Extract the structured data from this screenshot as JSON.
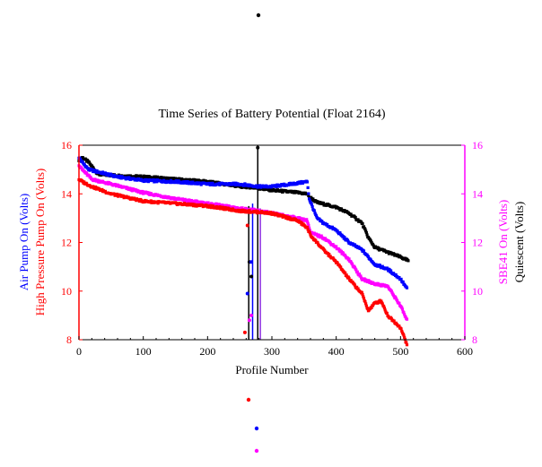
{
  "chart_data": {
    "type": "scatter",
    "title": "Time Series of Battery Potential (Float 2164)",
    "xlabel": "Profile Number",
    "xlim": [
      0,
      600
    ],
    "x_ticks": [
      0,
      100,
      200,
      300,
      400,
      500,
      600
    ],
    "ylim": [
      8,
      16
    ],
    "y_ticks": [
      8,
      10,
      12,
      14,
      16
    ],
    "left_axis_color": "#ff0000",
    "right_axis_color": "#ff00ff",
    "y_label_left_outer": "Air Pump On (Volts)",
    "y_label_left_inner": "High Pressure Pump On (Volts)",
    "y_label_right_inner": "SBE41 On (Volts)",
    "y_label_right_outer": "Quiescent (Volts)",
    "grid": false,
    "series": [
      {
        "name": "Quiescent (Volts)",
        "color": "#000000",
        "anchors": [
          [
            0,
            15.4
          ],
          [
            5,
            15.5
          ],
          [
            15,
            15.3
          ],
          [
            30,
            14.8
          ],
          [
            60,
            14.75
          ],
          [
            100,
            14.7
          ],
          [
            150,
            14.6
          ],
          [
            200,
            14.5
          ],
          [
            250,
            14.3
          ],
          [
            265,
            14.28
          ],
          [
            300,
            14.15
          ],
          [
            340,
            14.05
          ],
          [
            355,
            14.0
          ],
          [
            357,
            13.9
          ],
          [
            370,
            13.65
          ],
          [
            400,
            13.45
          ],
          [
            420,
            13.2
          ],
          [
            440,
            12.8
          ],
          [
            450,
            12.2
          ],
          [
            460,
            11.8
          ],
          [
            480,
            11.6
          ],
          [
            500,
            11.4
          ],
          [
            512,
            11.25
          ]
        ],
        "outliers": [
          [
            265,
            11.2
          ],
          [
            268,
            10.6
          ],
          [
            278,
            15.9
          ]
        ]
      },
      {
        "name": "Air Pump On (Volts)",
        "color": "#0000ff",
        "anchors": [
          [
            0,
            15.5
          ],
          [
            5,
            15.3
          ],
          [
            15,
            15.0
          ],
          [
            30,
            14.9
          ],
          [
            60,
            14.7
          ],
          [
            100,
            14.55
          ],
          [
            150,
            14.5
          ],
          [
            200,
            14.4
          ],
          [
            250,
            14.4
          ],
          [
            280,
            14.3
          ],
          [
            300,
            14.3
          ],
          [
            330,
            14.4
          ],
          [
            355,
            14.5
          ],
          [
            358,
            13.8
          ],
          [
            370,
            13.0
          ],
          [
            380,
            12.8
          ],
          [
            400,
            12.5
          ],
          [
            420,
            12.0
          ],
          [
            440,
            11.7
          ],
          [
            460,
            11.1
          ],
          [
            480,
            10.9
          ],
          [
            500,
            10.5
          ],
          [
            510,
            10.1
          ]
        ],
        "outliers": [
          [
            262,
            9.9
          ],
          [
            268,
            11.2
          ]
        ]
      },
      {
        "name": "SBE41 On (Volts)",
        "color": "#ff00ff",
        "anchors": [
          [
            0,
            15.2
          ],
          [
            5,
            15.0
          ],
          [
            20,
            14.6
          ],
          [
            50,
            14.4
          ],
          [
            100,
            14.05
          ],
          [
            150,
            13.8
          ],
          [
            200,
            13.6
          ],
          [
            250,
            13.4
          ],
          [
            280,
            13.3
          ],
          [
            300,
            13.2
          ],
          [
            340,
            13.0
          ],
          [
            355,
            12.9
          ],
          [
            360,
            12.4
          ],
          [
            380,
            12.2
          ],
          [
            400,
            11.8
          ],
          [
            420,
            11.3
          ],
          [
            440,
            10.5
          ],
          [
            460,
            10.3
          ],
          [
            480,
            10.2
          ],
          [
            500,
            9.4
          ],
          [
            510,
            8.8
          ]
        ],
        "outliers": [
          [
            265,
            8.8
          ],
          [
            268,
            9.0
          ]
        ]
      },
      {
        "name": "High Pressure Pump On (Volts)",
        "color": "#ff0000",
        "anchors": [
          [
            0,
            14.6
          ],
          [
            5,
            14.5
          ],
          [
            20,
            14.3
          ],
          [
            50,
            14.0
          ],
          [
            100,
            13.7
          ],
          [
            150,
            13.6
          ],
          [
            200,
            13.5
          ],
          [
            250,
            13.3
          ],
          [
            280,
            13.25
          ],
          [
            300,
            13.2
          ],
          [
            340,
            12.9
          ],
          [
            355,
            12.6
          ],
          [
            360,
            12.3
          ],
          [
            380,
            11.7
          ],
          [
            400,
            11.2
          ],
          [
            420,
            10.5
          ],
          [
            440,
            9.9
          ],
          [
            450,
            9.2
          ],
          [
            460,
            9.5
          ],
          [
            470,
            9.6
          ],
          [
            480,
            9.0
          ],
          [
            500,
            8.5
          ],
          [
            510,
            7.8
          ]
        ],
        "outliers": [
          [
            258,
            8.3
          ],
          [
            262,
            12.7
          ]
        ]
      }
    ],
    "vertical_lines": [
      {
        "x": 264,
        "y_from": 8,
        "y_to": 13.5,
        "color": "#000000"
      },
      {
        "x": 270,
        "y_from": 8,
        "y_to": 13.6,
        "color": "#0000ff"
      },
      {
        "x": 278,
        "y_from": 8,
        "y_to": 16,
        "color": "#000000"
      },
      {
        "x": 282,
        "y_from": 8,
        "y_to": 13.4,
        "color": "#8a2be2"
      }
    ],
    "legend_markers": [
      {
        "series": "Quiescent (Volts)",
        "color": "#000000"
      },
      {
        "series": "High Pressure Pump On (Volts)",
        "color": "#ff0000"
      },
      {
        "series": "Air Pump On (Volts)",
        "color": "#0000ff"
      },
      {
        "series": "SBE41 On (Volts)",
        "color": "#ff00ff"
      }
    ]
  }
}
